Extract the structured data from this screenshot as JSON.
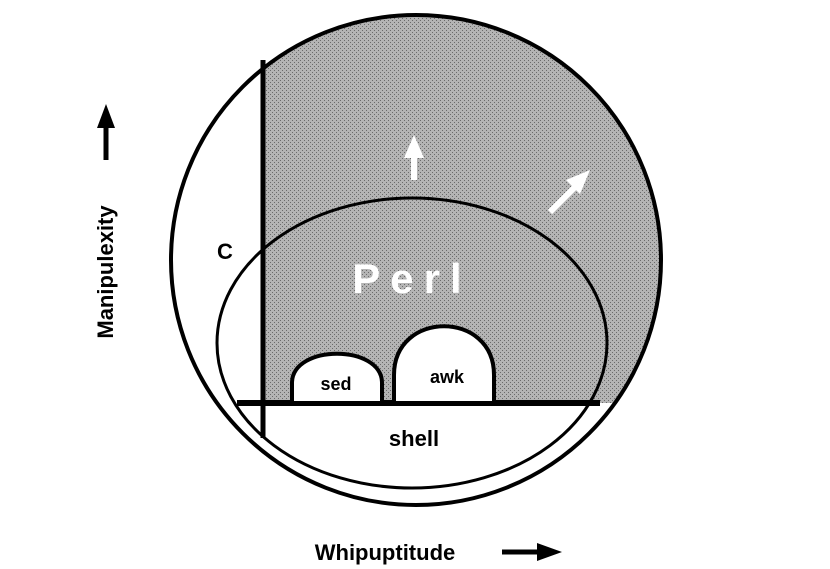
{
  "diagram": {
    "y_axis_label": "Manipulexity",
    "x_axis_label": "Whipuptitude",
    "regions": {
      "c": "C",
      "perl": "Perl",
      "sed": "sed",
      "awk": "awk",
      "shell": "shell"
    },
    "colors": {
      "perl_fill": "#a9a9a9",
      "stroke": "#000000",
      "background": "#ffffff"
    }
  }
}
